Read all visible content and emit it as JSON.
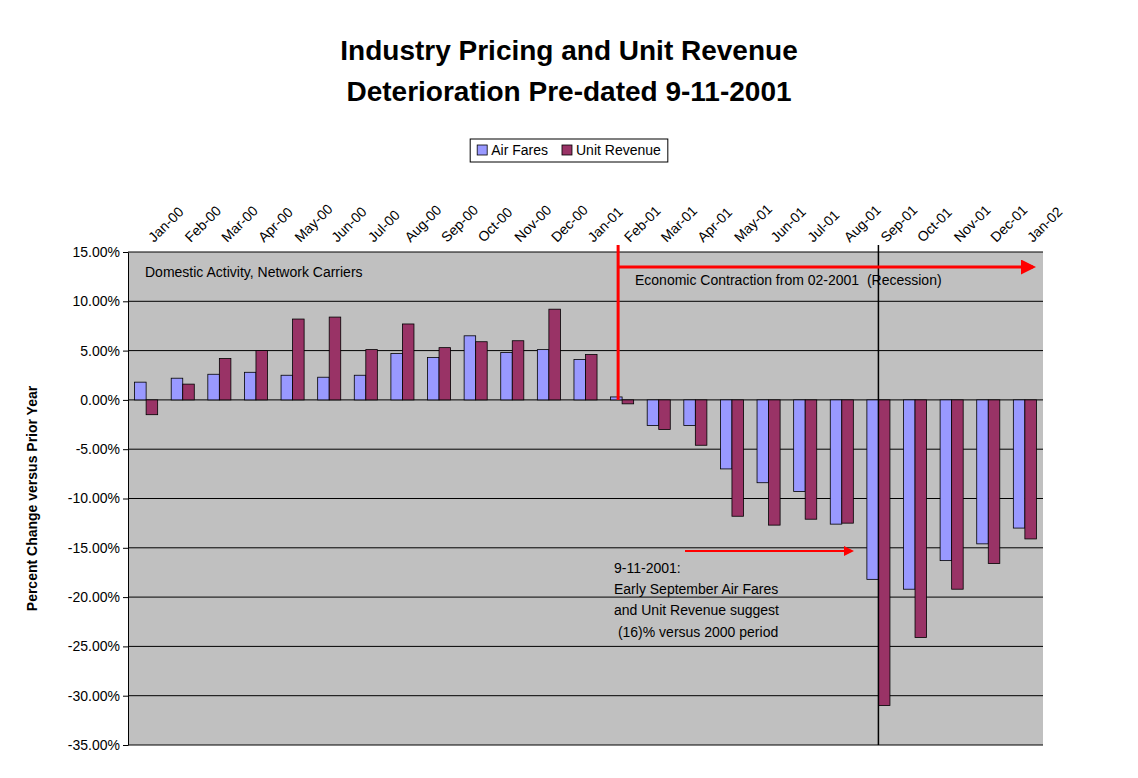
{
  "chart_data": {
    "type": "bar",
    "title": "Industry Pricing and Unit Revenue",
    "subtitle": "Deterioration Pre-dated 9-11-2001",
    "y_label": "Percent Change versus Prior Year",
    "categories": [
      "Jan-00",
      "Feb-00",
      "Mar-00",
      "Apr-00",
      "May-00",
      "Jun-00",
      "Jul-00",
      "Aug-00",
      "Sep-00",
      "Oct-00",
      "Nov-00",
      "Dec-00",
      "Jan-01",
      "Feb-01",
      "Mar-01",
      "Apr-01",
      "May-01",
      "Jun-01",
      "Jul-01",
      "Aug-01",
      "Sep-01",
      "Oct-01",
      "Nov-01",
      "Dec-01",
      "Jan-02"
    ],
    "series": [
      {
        "name": "Air Fares",
        "color": "#9999ff",
        "values": [
          1.8,
          2.2,
          2.6,
          2.8,
          2.5,
          2.3,
          2.5,
          4.7,
          4.3,
          6.5,
          4.8,
          5.1,
          4.1,
          0.3,
          -2.6,
          -2.6,
          -7.0,
          -8.4,
          -9.3,
          -12.6,
          -18.2,
          -19.2,
          -16.3,
          -14.6,
          -13.0
        ]
      },
      {
        "name": "Unit Revenue",
        "color": "#993366",
        "values": [
          -1.5,
          1.6,
          4.2,
          5.0,
          8.2,
          8.4,
          5.1,
          7.7,
          5.3,
          5.9,
          6.0,
          9.2,
          4.6,
          -0.4,
          -3.0,
          -4.6,
          -11.8,
          -12.7,
          -12.1,
          -12.5,
          -31.0,
          -24.1,
          -19.2,
          -16.6,
          -14.1
        ]
      }
    ],
    "ylim": [
      -35,
      15
    ],
    "yticks": [
      {
        "value": -35,
        "label": "-35.00%"
      },
      {
        "value": -30,
        "label": "-30.00%"
      },
      {
        "value": -25,
        "label": "-25.00%"
      },
      {
        "value": -20,
        "label": "-20.00%"
      },
      {
        "value": -15,
        "label": "-15.00%"
      },
      {
        "value": -10,
        "label": "-10.00%"
      },
      {
        "value": -5,
        "label": "-5.00%"
      },
      {
        "value": 0,
        "label": "0.00%"
      },
      {
        "value": 5,
        "label": "5.00%"
      },
      {
        "value": 10,
        "label": "10.00%"
      },
      {
        "value": 15,
        "label": "15.00%"
      }
    ],
    "grid": true,
    "legend": "top",
    "annotations": [
      "Domestic Activity, Network Carriers",
      "Economic Contraction from 02-2001  (Recession)",
      "9-11-2001:",
      "Early September Air Fares",
      "and Unit Revenue suggest",
      " (16)% versus 2000 period"
    ]
  }
}
